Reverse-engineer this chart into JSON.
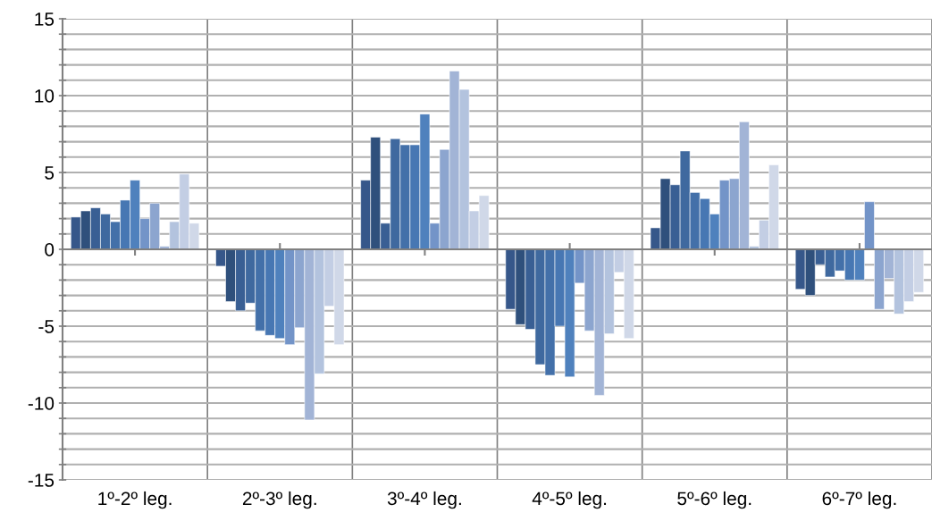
{
  "chart_data": {
    "type": "bar",
    "categories": [
      "1º-2º leg.",
      "2º-3º leg.",
      "3º-4º leg.",
      "4º-5º leg.",
      "5º-6º leg.",
      "6º-7º leg."
    ],
    "series": [
      {
        "color": "#36578a",
        "values": [
          2.1,
          -1.1,
          4.5,
          -3.9,
          1.4,
          -2.6
        ]
      },
      {
        "color": "#2f507c",
        "values": [
          2.5,
          -3.4,
          7.3,
          -4.9,
          4.6,
          -3.0
        ]
      },
      {
        "color": "#395f94",
        "values": [
          2.7,
          -4.0,
          1.7,
          -5.2,
          4.2,
          -1.0
        ]
      },
      {
        "color": "#3f699f",
        "values": [
          2.3,
          -3.5,
          7.2,
          -7.5,
          6.4,
          -1.8
        ]
      },
      {
        "color": "#4370a9",
        "values": [
          1.8,
          -5.3,
          6.8,
          -8.2,
          3.7,
          -1.4
        ]
      },
      {
        "color": "#4777b3",
        "values": [
          3.2,
          -5.6,
          6.8,
          -5.0,
          3.3,
          -2.0
        ]
      },
      {
        "color": "#4f81bd",
        "values": [
          4.5,
          -5.8,
          8.8,
          -8.3,
          2.3,
          -2.0
        ]
      },
      {
        "color": "#7394c8",
        "values": [
          2.0,
          -6.2,
          1.7,
          -2.2,
          4.5,
          3.1
        ]
      },
      {
        "color": "#8ca5cf",
        "values": [
          3.0,
          -5.1,
          6.5,
          -5.3,
          4.6,
          -3.9
        ]
      },
      {
        "color": "#a2b4d6",
        "values": [
          0.2,
          -11.1,
          11.6,
          -9.5,
          8.3,
          -1.9
        ]
      },
      {
        "color": "#b3c3de",
        "values": [
          1.8,
          -8.1,
          10.4,
          -5.5,
          0.2,
          -4.2
        ]
      },
      {
        "color": "#c3cee4",
        "values": [
          4.9,
          -3.7,
          2.5,
          -1.5,
          1.9,
          -3.4
        ]
      },
      {
        "color": "#d0d8e8",
        "values": [
          1.7,
          -6.2,
          3.5,
          -5.8,
          5.5,
          -2.8
        ]
      }
    ],
    "ylim": [
      -15,
      15
    ],
    "yticks": [
      -15,
      {
        "value": -14,
        "label": null
      },
      {
        "value": -13,
        "label": null
      },
      {
        "value": -12,
        "label": null
      },
      {
        "value": -11,
        "label": null
      },
      -10,
      {
        "value": -9,
        "label": null
      },
      {
        "value": -8,
        "label": null
      },
      {
        "value": -7,
        "label": null
      },
      {
        "value": -6,
        "label": null
      },
      -5,
      {
        "value": -4,
        "label": null
      },
      {
        "value": -3,
        "label": null
      },
      {
        "value": -2,
        "label": null
      },
      {
        "value": -1,
        "label": null
      },
      0,
      {
        "value": 1,
        "label": null
      },
      {
        "value": 2,
        "label": null
      },
      {
        "value": 3,
        "label": null
      },
      {
        "value": 4,
        "label": null
      },
      5,
      {
        "value": 6,
        "label": null
      },
      {
        "value": 7,
        "label": null
      },
      {
        "value": 8,
        "label": null
      },
      {
        "value": 9,
        "label": null
      },
      10,
      {
        "value": 11,
        "label": null
      },
      {
        "value": 12,
        "label": null
      },
      {
        "value": 13,
        "label": null
      },
      {
        "value": 14,
        "label": null
      },
      15
    ],
    "grid": true
  }
}
